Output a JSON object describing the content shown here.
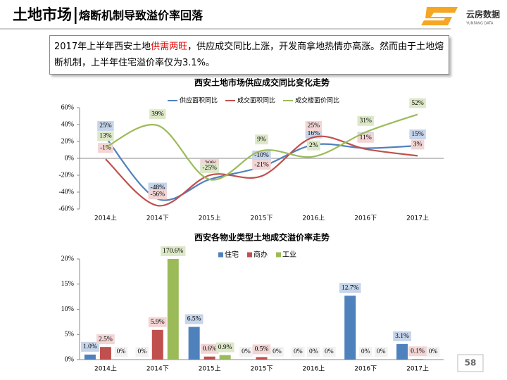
{
  "header": {
    "title": "土地市场",
    "subtitle": "熔断机制导致溢价率回落"
  },
  "logo": {
    "name": "云房数据",
    "tagline": "YUNFANG DATA"
  },
  "intro": {
    "parts": [
      "2017年上半年西安土地",
      "供需两旺",
      "，供应成交同比上涨，开发商拿地热情亦高涨。然而由于土地熔断机制，上半年住宅溢价率仅为3.1%。"
    ]
  },
  "page_number": "58",
  "chart_data": [
    {
      "type": "line",
      "title": "西安土地市场供应成交同比变化走势",
      "categories": [
        "2014上",
        "2014下",
        "2015上",
        "2015下",
        "2016上",
        "2016下",
        "2017上"
      ],
      "ylim": [
        -60,
        60
      ],
      "yticks": [
        {
          "value": -60,
          "label": "-60%"
        },
        {
          "value": -40,
          "label": "-40%"
        },
        {
          "value": -20,
          "label": "-20%"
        },
        {
          "value": 0,
          "label": "0%"
        },
        {
          "value": 20,
          "label": "20%"
        },
        {
          "value": 40,
          "label": "40%"
        },
        {
          "value": 60,
          "label": "60%"
        }
      ],
      "legend": "top",
      "series": [
        {
          "name": "供应面积同比",
          "color": "#4f81bd",
          "label_fill": "#c6d5ea",
          "values": [
            25,
            -48,
            -25,
            -10,
            16,
            12,
            15
          ],
          "value_labels": [
            "25%",
            "-48%",
            "-25%",
            "-10%",
            "16%",
            "12%",
            "15%"
          ]
        },
        {
          "name": "成交面积同比",
          "color": "#c0504d",
          "label_fill": "#f2d5d4",
          "values": [
            -1,
            -56,
            -20,
            -21,
            25,
            11,
            3
          ],
          "value_labels": [
            "-1%",
            "-56%",
            "-20%",
            "-21%",
            "25%",
            "11%",
            "3%"
          ]
        },
        {
          "name": "成交楼面价同比",
          "color": "#9bbb59",
          "label_fill": "#dde8c8",
          "values": [
            13,
            39,
            -25,
            9,
            2,
            31,
            52
          ],
          "value_labels": [
            "13%",
            "39%",
            "-25%",
            "9%",
            "2%",
            "31%",
            "52%"
          ]
        }
      ]
    },
    {
      "type": "bar",
      "title": "西安各物业类型土地成交溢价率走势",
      "categories": [
        "2014上",
        "2014下",
        "2015上",
        "2015下",
        "2016上",
        "2016下",
        "2017上"
      ],
      "ylim": [
        0,
        20
      ],
      "yticks": [
        {
          "value": 0,
          "label": "0%"
        },
        {
          "value": 5,
          "label": "5%"
        },
        {
          "value": 10,
          "label": "10%"
        },
        {
          "value": 15,
          "label": "15%"
        },
        {
          "value": 20,
          "label": "20%"
        }
      ],
      "legend": "top-right",
      "series": [
        {
          "name": "住宅",
          "color": "#4f81bd",
          "label_fill": "#c6d5ea",
          "values": [
            1.0,
            0,
            6.5,
            0,
            0,
            12.7,
            3.1
          ],
          "value_labels": [
            "1.0%",
            "0%",
            "6.5%",
            "0%",
            "0%",
            "12.7%",
            "3.1%"
          ]
        },
        {
          "name": "商办",
          "color": "#c0504d",
          "label_fill": "#f2d5d4",
          "values": [
            2.5,
            5.9,
            0.6,
            0.5,
            0,
            0,
            0.1
          ],
          "value_labels": [
            "2.5%",
            "5.9%",
            "0.6%",
            "0.5%",
            "0%",
            "0%",
            "0.1%"
          ]
        },
        {
          "name": "工业",
          "color": "#9bbb59",
          "label_fill": "#dde8c8",
          "values": [
            0,
            170.6,
            0.9,
            0,
            0,
            0,
            0
          ],
          "value_labels": [
            "0%",
            "170.6%",
            "0.9%",
            "0%",
            "0%",
            "0%",
            "0%"
          ]
        }
      ]
    }
  ]
}
